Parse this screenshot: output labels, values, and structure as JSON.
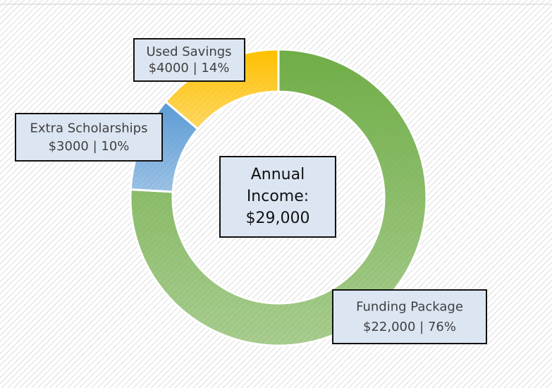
{
  "chart_data": {
    "type": "donut",
    "categories": [
      "Funding Package",
      "Extra Scholarships",
      "Used Savings"
    ],
    "values": [
      22000,
      3000,
      4000
    ],
    "value_labels": [
      "$22,000  |  76%",
      "$3000  |  10%",
      "$4000  |  14%"
    ],
    "colors": [
      "#70ad47",
      "#5b9bd5",
      "#ffc000"
    ],
    "center_label": [
      "Annual",
      "Income:",
      "$29,000"
    ]
  }
}
